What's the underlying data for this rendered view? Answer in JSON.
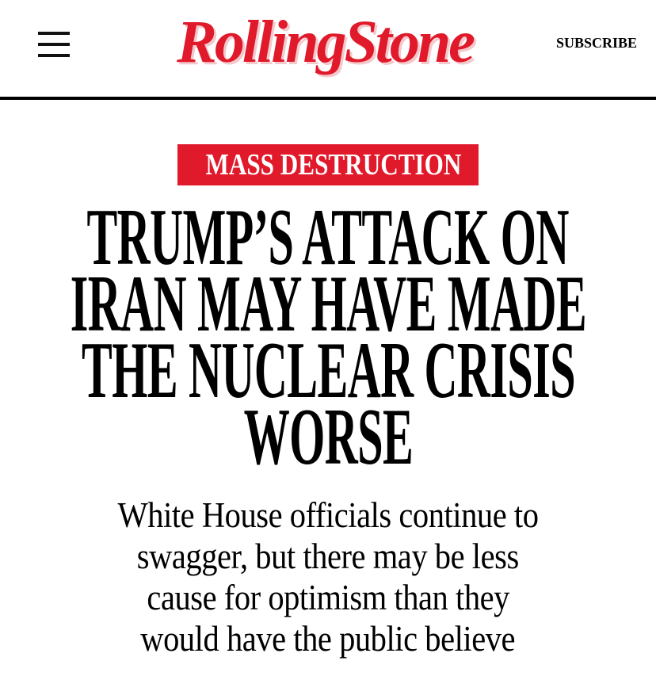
{
  "header": {
    "logo": "RollingStone",
    "subscribe": "SUBSCRIBE"
  },
  "article": {
    "category": "MASS DESTRUCTION",
    "headline_lines": [
      "TRUMP’S ATTACK ON",
      "IRAN MAY HAVE MADE",
      "THE NUCLEAR CRISIS",
      "WORSE"
    ],
    "dek_lines": [
      "White House officials continue to",
      "swagger, but there may be less",
      "cause for optimism than they",
      "would have the public believe"
    ]
  }
}
